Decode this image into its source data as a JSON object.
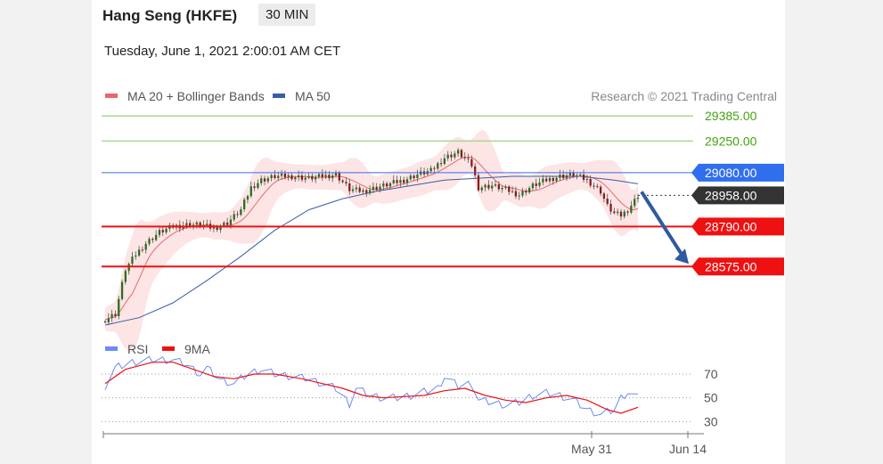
{
  "header": {
    "title": "Hang Seng (HKFE)",
    "interval": "30 MIN",
    "datetime": "Tuesday, June 1, 2021 2:00:01 AM CET"
  },
  "colors": {
    "ma20": "#e8676b",
    "band_fill": "#fde0e0",
    "ma50": "#3a5da8",
    "resistance": "#a9d98f",
    "resistance_text": "#43a30f",
    "support": "#ee1111",
    "current_price_bg": "#333333",
    "pivot_bg": "#2f6fee",
    "arrow": "#2e5aa0",
    "candle_up": "#2a6e1f",
    "candle_down": "#8b1a1a",
    "rsi": "#6b8cf5",
    "rsi_ma": "#ee1111"
  },
  "chart_data": [
    {
      "type": "candlestick",
      "legend": [
        "MA 20 + Bollinger Bands",
        "MA 50"
      ],
      "credit": "Research © 2021 Trading Central",
      "levels": [
        {
          "value": 29385.0,
          "label": "29385.00",
          "kind": "resistance"
        },
        {
          "value": 29250.0,
          "label": "29250.00",
          "kind": "resistance"
        },
        {
          "value": 29080.0,
          "label": "29080.00",
          "kind": "pivot"
        },
        {
          "value": 28958.0,
          "label": "28958.00",
          "kind": "last-price"
        },
        {
          "value": 28790.0,
          "label": "28790.00",
          "kind": "support"
        },
        {
          "value": 28575.0,
          "label": "28575.00",
          "kind": "support"
        }
      ],
      "ylim": [
        28260,
        29410
      ],
      "n_bars": 100,
      "close_path": [
        [
          0,
          28290
        ],
        [
          3,
          28320
        ],
        [
          6,
          28560
        ],
        [
          9,
          28640
        ],
        [
          12,
          28700
        ],
        [
          16,
          28760
        ],
        [
          20,
          28790
        ],
        [
          24,
          28800
        ],
        [
          28,
          28800
        ],
        [
          32,
          28780
        ],
        [
          36,
          28810
        ],
        [
          40,
          28880
        ],
        [
          43,
          29000
        ],
        [
          46,
          29040
        ],
        [
          50,
          29060
        ],
        [
          55,
          29060
        ],
        [
          60,
          29050
        ],
        [
          64,
          29060
        ],
        [
          68,
          29070
        ],
        [
          72,
          28990
        ],
        [
          76,
          28980
        ],
        [
          80,
          29000
        ],
        [
          84,
          29020
        ],
        [
          88,
          29040
        ],
        [
          92,
          29070
        ],
        [
          96,
          29090
        ],
        [
          100,
          29160
        ],
        [
          104,
          29190
        ],
        [
          108,
          29120
        ],
        [
          110,
          29000
        ],
        [
          114,
          29010
        ],
        [
          118,
          28990
        ],
        [
          122,
          28960
        ],
        [
          126,
          29010
        ],
        [
          130,
          29040
        ],
        [
          134,
          29060
        ],
        [
          138,
          29070
        ],
        [
          142,
          29040
        ],
        [
          146,
          28980
        ],
        [
          148,
          28900
        ],
        [
          150,
          28860
        ],
        [
          152,
          28850
        ],
        [
          154,
          28880
        ],
        [
          156,
          28930
        ],
        [
          157,
          28958
        ]
      ],
      "ma50_path": [
        [
          0,
          28260
        ],
        [
          10,
          28300
        ],
        [
          20,
          28380
        ],
        [
          30,
          28500
        ],
        [
          40,
          28630
        ],
        [
          50,
          28770
        ],
        [
          60,
          28880
        ],
        [
          70,
          28940
        ],
        [
          80,
          28980
        ],
        [
          90,
          29010
        ],
        [
          100,
          29040
        ],
        [
          110,
          29050
        ],
        [
          120,
          29060
        ],
        [
          130,
          29060
        ],
        [
          140,
          29060
        ],
        [
          150,
          29040
        ],
        [
          157,
          29020
        ]
      ],
      "x_ticks": [
        "May 31",
        "Jun 14"
      ]
    },
    {
      "type": "line",
      "legend": [
        "RSI",
        "9MA"
      ],
      "ylim": [
        25,
        85
      ],
      "y_ticks": [
        70,
        50,
        30
      ],
      "rsi_path": [
        [
          0,
          60
        ],
        [
          3,
          75
        ],
        [
          8,
          80
        ],
        [
          14,
          82
        ],
        [
          20,
          82
        ],
        [
          24,
          78
        ],
        [
          28,
          70
        ],
        [
          30,
          75
        ],
        [
          34,
          65
        ],
        [
          38,
          62
        ],
        [
          42,
          70
        ],
        [
          46,
          74
        ],
        [
          50,
          70
        ],
        [
          55,
          68
        ],
        [
          60,
          66
        ],
        [
          64,
          62
        ],
        [
          68,
          58
        ],
        [
          72,
          45
        ],
        [
          74,
          58
        ],
        [
          78,
          52
        ],
        [
          82,
          50
        ],
        [
          86,
          50
        ],
        [
          90,
          52
        ],
        [
          94,
          55
        ],
        [
          98,
          58
        ],
        [
          100,
          68
        ],
        [
          104,
          60
        ],
        [
          108,
          62
        ],
        [
          110,
          48
        ],
        [
          114,
          46
        ],
        [
          118,
          44
        ],
        [
          122,
          46
        ],
        [
          126,
          52
        ],
        [
          130,
          54
        ],
        [
          134,
          52
        ],
        [
          138,
          48
        ],
        [
          142,
          40
        ],
        [
          146,
          36
        ],
        [
          150,
          40
        ],
        [
          152,
          50
        ],
        [
          154,
          55
        ],
        [
          157,
          50
        ]
      ],
      "rsi_ma_path": [
        [
          0,
          62
        ],
        [
          6,
          74
        ],
        [
          14,
          80
        ],
        [
          20,
          80
        ],
        [
          26,
          74
        ],
        [
          32,
          68
        ],
        [
          38,
          66
        ],
        [
          44,
          70
        ],
        [
          50,
          70
        ],
        [
          58,
          66
        ],
        [
          64,
          62
        ],
        [
          70,
          58
        ],
        [
          76,
          52
        ],
        [
          82,
          50
        ],
        [
          88,
          51
        ],
        [
          94,
          52
        ],
        [
          100,
          56
        ],
        [
          106,
          58
        ],
        [
          112,
          52
        ],
        [
          118,
          48
        ],
        [
          124,
          46
        ],
        [
          130,
          50
        ],
        [
          136,
          52
        ],
        [
          142,
          48
        ],
        [
          148,
          40
        ],
        [
          152,
          37
        ],
        [
          157,
          42
        ]
      ]
    }
  ]
}
